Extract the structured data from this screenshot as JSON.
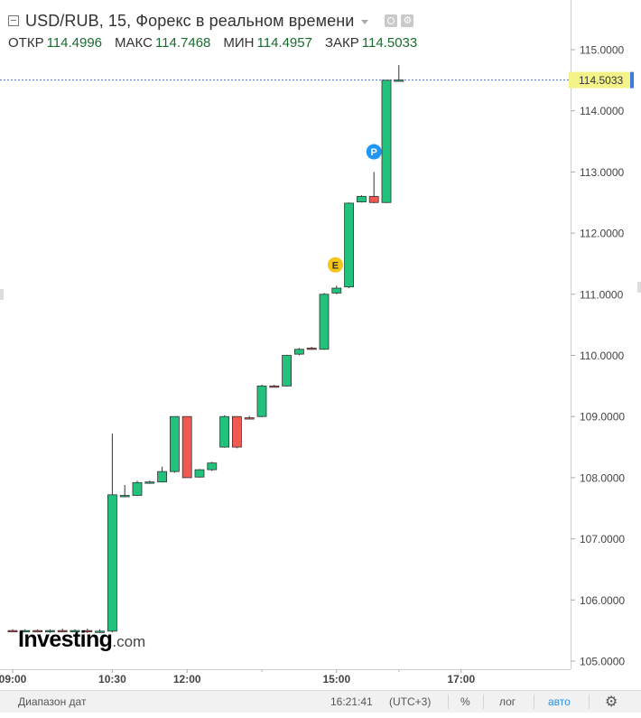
{
  "header": {
    "title": "USD/RUB, 15, Форекс в реальном времени",
    "ohlc": [
      {
        "label": "ОТКР",
        "value": "114.4996"
      },
      {
        "label": "МАКС",
        "value": "114.7468"
      },
      {
        "label": "МИН",
        "value": "114.4957"
      },
      {
        "label": "ЗАКР",
        "value": "114.5033"
      }
    ]
  },
  "watermark": {
    "brand": "Investing",
    "suffix": ".com"
  },
  "price_badge": "114.5033",
  "bottom_bar": {
    "date_range": "Диапазон дат",
    "time": "16:21:41",
    "timezone": "(UTC+3)",
    "percent": "%",
    "log": "лог",
    "auto": "авто"
  },
  "colors": {
    "up": "#22c17c",
    "down": "#f05a50",
    "badge": "#f3f38a",
    "marker_p": "#2196f3",
    "marker_e": "#f5c518"
  },
  "chart_data": {
    "type": "candlestick",
    "ylim": [
      105.0,
      115.0
    ],
    "y_ticks": [
      "105.0000",
      "106.0000",
      "107.0000",
      "108.0000",
      "109.0000",
      "110.0000",
      "111.0000",
      "112.0000",
      "113.0000",
      "114.0000",
      "115.0000"
    ],
    "x_ticks": [
      "09:00",
      "10:30",
      "12:00",
      "15:00",
      "17:00"
    ],
    "last_price": 114.5033,
    "candles": [
      {
        "t": 0,
        "open": 105.5,
        "high": 105.52,
        "low": 105.47,
        "close": 105.49
      },
      {
        "t": 1,
        "open": 105.49,
        "high": 105.52,
        "low": 105.47,
        "close": 105.5
      },
      {
        "t": 2,
        "open": 105.5,
        "high": 105.52,
        "low": 105.47,
        "close": 105.49
      },
      {
        "t": 3,
        "open": 105.49,
        "high": 105.52,
        "low": 105.46,
        "close": 105.5
      },
      {
        "t": 4,
        "open": 105.5,
        "high": 105.53,
        "low": 105.47,
        "close": 105.49
      },
      {
        "t": 5,
        "open": 105.49,
        "high": 105.52,
        "low": 105.47,
        "close": 105.5
      },
      {
        "t": 6,
        "open": 105.5,
        "high": 105.53,
        "low": 105.46,
        "close": 105.48
      },
      {
        "t": 7,
        "open": 105.48,
        "high": 105.52,
        "low": 105.46,
        "close": 105.49
      },
      {
        "t": 8,
        "open": 105.49,
        "high": 108.72,
        "low": 105.47,
        "close": 107.72
      },
      {
        "t": 9,
        "open": 107.7,
        "high": 107.88,
        "low": 107.68,
        "close": 107.71
      },
      {
        "t": 10,
        "open": 107.71,
        "high": 107.95,
        "low": 107.7,
        "close": 107.92
      },
      {
        "t": 11,
        "open": 107.92,
        "high": 107.95,
        "low": 107.9,
        "close": 107.93
      },
      {
        "t": 12,
        "open": 107.93,
        "high": 108.18,
        "low": 107.92,
        "close": 108.1
      },
      {
        "t": 13,
        "open": 108.1,
        "high": 109.0,
        "low": 108.08,
        "close": 109.0
      },
      {
        "t": 14,
        "open": 109.0,
        "high": 109.0,
        "low": 108.0,
        "close": 108.0
      },
      {
        "t": 15,
        "open": 108.01,
        "high": 108.14,
        "low": 108.0,
        "close": 108.13
      },
      {
        "t": 16,
        "open": 108.13,
        "high": 108.26,
        "low": 108.11,
        "close": 108.24
      },
      {
        "t": 17,
        "open": 108.5,
        "high": 109.02,
        "low": 108.49,
        "close": 109.0
      },
      {
        "t": 18,
        "open": 109.0,
        "high": 109.0,
        "low": 108.48,
        "close": 108.5
      },
      {
        "t": 19,
        "open": 108.98,
        "high": 109.01,
        "low": 108.96,
        "close": 108.97
      },
      {
        "t": 20,
        "open": 109.0,
        "high": 109.52,
        "low": 108.99,
        "close": 109.5
      },
      {
        "t": 21,
        "open": 109.5,
        "high": 109.52,
        "low": 109.48,
        "close": 109.49
      },
      {
        "t": 22,
        "open": 109.5,
        "high": 110.01,
        "low": 109.49,
        "close": 110.0
      },
      {
        "t": 23,
        "open": 110.02,
        "high": 110.12,
        "low": 110.0,
        "close": 110.1
      },
      {
        "t": 24,
        "open": 110.12,
        "high": 110.14,
        "low": 110.09,
        "close": 110.11
      },
      {
        "t": 25,
        "open": 110.1,
        "high": 111.02,
        "low": 110.09,
        "close": 111.0
      },
      {
        "t": 26,
        "open": 111.02,
        "high": 111.14,
        "low": 111.0,
        "close": 111.1
      },
      {
        "t": 27,
        "open": 111.12,
        "high": 112.5,
        "low": 111.1,
        "close": 112.49
      },
      {
        "t": 28,
        "open": 112.51,
        "high": 112.62,
        "low": 112.5,
        "close": 112.6
      },
      {
        "t": 29,
        "open": 112.6,
        "high": 113.0,
        "low": 112.49,
        "close": 112.5
      },
      {
        "t": 30,
        "open": 112.5,
        "high": 114.5,
        "low": 112.49,
        "close": 114.5
      },
      {
        "t": 31,
        "open": 114.4996,
        "high": 114.7468,
        "low": 114.4957,
        "close": 114.5033
      }
    ],
    "markers": [
      {
        "label": "P",
        "t": 29,
        "price": 113.33,
        "color": "#2196f3"
      },
      {
        "label": "E",
        "t": 25.9,
        "price": 111.48,
        "color": "#f5c518"
      }
    ]
  }
}
